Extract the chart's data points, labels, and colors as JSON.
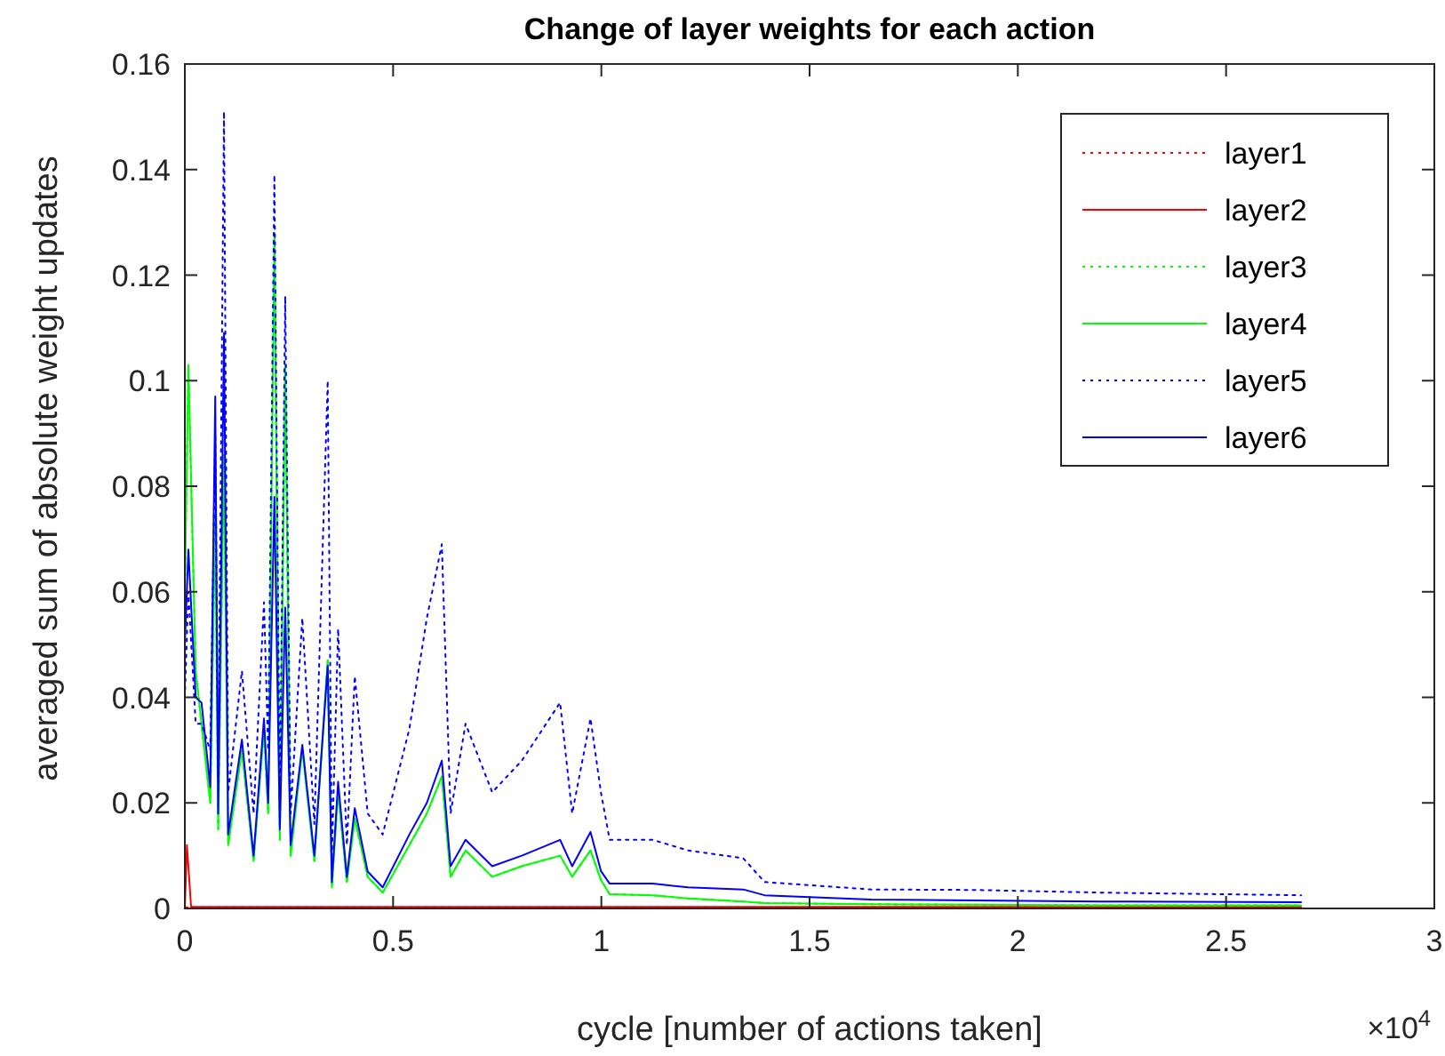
{
  "chart_data": {
    "type": "line",
    "title": "Change of layer weights for each action",
    "xlabel": "cycle [number of actions taken]",
    "ylabel": "averaged sum of absolute weight updates",
    "annotations": [
      "×10$^{4}$"
    ],
    "x": [
      0,
      0.0085,
      0.026,
      0.04,
      0.061,
      0.073,
      0.08,
      0.094,
      0.104,
      0.137,
      0.165,
      0.19,
      0.2,
      0.215,
      0.228,
      0.241,
      0.254,
      0.282,
      0.311,
      0.343,
      0.353,
      0.368,
      0.389,
      0.408,
      0.439,
      0.475,
      0.539,
      0.581,
      0.617,
      0.638,
      0.674,
      0.738,
      0.809,
      0.901,
      0.93,
      0.974,
      0.999,
      1.02,
      1.123,
      1.208,
      1.341,
      1.392,
      1.648,
      1.9,
      2.2,
      2.68
    ],
    "series": [
      {
        "name": "layer1",
        "color": "#ff0000",
        "line_style": "dotted",
        "x": [
          0,
          2.68
        ],
        "values": [
          0.0002,
          0.0002
        ]
      },
      {
        "name": "layer2",
        "color": "#ff0000",
        "line_style": "solid",
        "x": [
          0,
          0.005,
          0.015,
          2.68
        ],
        "values": [
          0,
          0.012,
          0.0003,
          0.0003
        ]
      },
      {
        "name": "layer3",
        "color": "#00ff00",
        "line_style": "dotted",
        "values": [
          0.06,
          0.103,
          0.045,
          0.035,
          0.02,
          0.075,
          0.015,
          0.086,
          0.012,
          0.03,
          0.009,
          0.034,
          0.018,
          0.128,
          0.013,
          0.103,
          0.01,
          0.03,
          0.009,
          0.047,
          0.004,
          0.022,
          0.005,
          0.017,
          0.006,
          0.003,
          0.012,
          0.018,
          0.025,
          0.006,
          0.011,
          0.006,
          0.008,
          0.01,
          0.006,
          0.011,
          0.0054,
          0.0027,
          0.0025,
          0.0019,
          0.0013,
          0.001,
          0.0008,
          0.0007,
          0.0006,
          0.0006
        ]
      },
      {
        "name": "layer4",
        "color": "#00ff00",
        "line_style": "solid",
        "values": [
          0.06,
          0.103,
          0.045,
          0.035,
          0.02,
          0.075,
          0.015,
          0.086,
          0.012,
          0.03,
          0.009,
          0.034,
          0.018,
          0.128,
          0.013,
          0.103,
          0.01,
          0.03,
          0.009,
          0.047,
          0.004,
          0.022,
          0.005,
          0.017,
          0.006,
          0.003,
          0.012,
          0.018,
          0.025,
          0.006,
          0.011,
          0.006,
          0.008,
          0.01,
          0.006,
          0.011,
          0.0054,
          0.0027,
          0.0025,
          0.0019,
          0.0013,
          0.001,
          0.0008,
          0.0007,
          0.0006,
          0.0006
        ]
      },
      {
        "name": "layer5",
        "color": "#0000ff",
        "line_style": "dotted",
        "values": [
          0.04,
          0.06,
          0.035,
          0.035,
          0.03,
          0.09,
          0.025,
          0.151,
          0.022,
          0.045,
          0.018,
          0.058,
          0.03,
          0.139,
          0.02,
          0.116,
          0.018,
          0.055,
          0.016,
          0.1,
          0.01,
          0.053,
          0.012,
          0.044,
          0.018,
          0.014,
          0.034,
          0.055,
          0.069,
          0.018,
          0.035,
          0.022,
          0.028,
          0.039,
          0.018,
          0.036,
          0.022,
          0.013,
          0.013,
          0.011,
          0.0095,
          0.005,
          0.0036,
          0.0035,
          0.003,
          0.0025
        ]
      },
      {
        "name": "layer6",
        "color": "#0000ff",
        "line_style": "solid",
        "values": [
          0.05,
          0.068,
          0.04,
          0.039,
          0.023,
          0.097,
          0.018,
          0.109,
          0.014,
          0.032,
          0.01,
          0.036,
          0.02,
          0.078,
          0.015,
          0.057,
          0.012,
          0.031,
          0.01,
          0.046,
          0.005,
          0.024,
          0.006,
          0.019,
          0.007,
          0.004,
          0.014,
          0.02,
          0.028,
          0.008,
          0.013,
          0.008,
          0.01,
          0.013,
          0.008,
          0.0145,
          0.0071,
          0.0047,
          0.0047,
          0.004,
          0.0036,
          0.0025,
          0.0017,
          0.0015,
          0.0013,
          0.0012
        ]
      }
    ],
    "xlim": [
      0,
      3
    ],
    "xticks": [
      0,
      0.5,
      1,
      1.5,
      2,
      2.5,
      3
    ],
    "ylim": [
      0,
      0.16
    ],
    "yticks": [
      0,
      0.02,
      0.04,
      0.06,
      0.08,
      0.1,
      0.12,
      0.14,
      0.16
    ],
    "legend": "top right",
    "grid": false
  }
}
